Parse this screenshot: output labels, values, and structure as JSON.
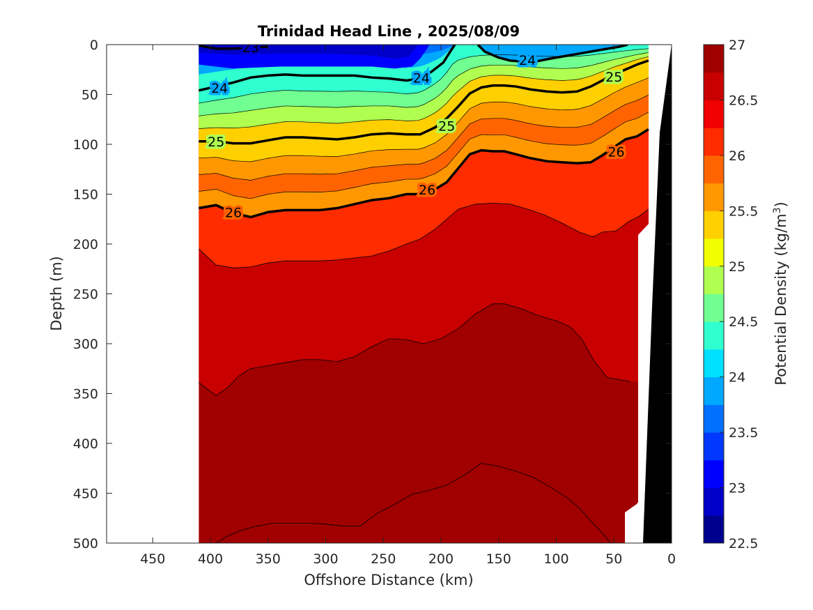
{
  "chart_data": {
    "type": "contour",
    "title": "Trinidad Head Line , 2025/08/09",
    "xlabel": "Offshore Distance (km)",
    "ylabel": "Depth (m)",
    "xlim": [
      490,
      0
    ],
    "ylim": [
      0,
      500
    ],
    "x_ticks": [
      450,
      400,
      350,
      300,
      250,
      200,
      150,
      100,
      50,
      0
    ],
    "y_ticks": [
      0,
      50,
      100,
      150,
      200,
      250,
      300,
      350,
      400,
      450,
      500
    ],
    "data_x_range": [
      410,
      20
    ],
    "colorbar": {
      "label": "Potential Density (kg/m",
      "label_sup": "3",
      "label_end": ")",
      "ticks": [
        "22.5",
        "23",
        "23.5",
        "24",
        "24.5",
        "25",
        "25.5",
        "26",
        "26.5",
        "27"
      ],
      "range": [
        22.5,
        27
      ],
      "step": 0.25,
      "colors": [
        "#00008f",
        "#0000c8",
        "#0000ff",
        "#0038ff",
        "#0070ff",
        "#00a8ff",
        "#00e0ff",
        "#30ffd0",
        "#70ff90",
        "#b0ff50",
        "#f0ff00",
        "#ffd000",
        "#ff9800",
        "#ff6400",
        "#ff2c00",
        "#f00000",
        "#c80000",
        "#a00000"
      ]
    },
    "contours": [
      {
        "level": 23.0,
        "label": "23",
        "points": [
          [
            410,
            1
          ],
          [
            395,
            4
          ],
          [
            380,
            4
          ],
          [
            365,
            3
          ],
          [
            350,
            2
          ]
        ]
      },
      {
        "level": 24.0,
        "label": "24",
        "points": [
          [
            410,
            46
          ],
          [
            395,
            42
          ],
          [
            380,
            38
          ],
          [
            365,
            33
          ],
          [
            350,
            31
          ],
          [
            335,
            30
          ],
          [
            320,
            31
          ],
          [
            305,
            31
          ],
          [
            290,
            31
          ],
          [
            275,
            31
          ],
          [
            260,
            33
          ],
          [
            245,
            34
          ],
          [
            230,
            36
          ],
          [
            218,
            34
          ],
          [
            208,
            27
          ],
          [
            198,
            18
          ],
          [
            192,
            7
          ],
          [
            188,
            0
          ]
        ]
      },
      {
        "level": 24.0,
        "label": "24",
        "points": [
          [
            168,
            0
          ],
          [
            162,
            7
          ],
          [
            150,
            13
          ],
          [
            140,
            16
          ],
          [
            130,
            17
          ],
          [
            118,
            17
          ],
          [
            105,
            14
          ],
          [
            90,
            11
          ],
          [
            75,
            8
          ],
          [
            60,
            5
          ],
          [
            45,
            2
          ],
          [
            38,
            0
          ]
        ]
      },
      {
        "level": 25.0,
        "label": "25",
        "points": [
          [
            410,
            97
          ],
          [
            395,
            97
          ],
          [
            380,
            99
          ],
          [
            365,
            99
          ],
          [
            350,
            96
          ],
          [
            335,
            93
          ],
          [
            320,
            93
          ],
          [
            305,
            94
          ],
          [
            290,
            95
          ],
          [
            275,
            93
          ],
          [
            260,
            90
          ],
          [
            245,
            89
          ],
          [
            230,
            90
          ],
          [
            218,
            90
          ],
          [
            205,
            83
          ],
          [
            195,
            74
          ],
          [
            185,
            62
          ],
          [
            175,
            49
          ],
          [
            165,
            43
          ],
          [
            155,
            41
          ],
          [
            145,
            41
          ],
          [
            135,
            42
          ],
          [
            122,
            45
          ],
          [
            108,
            47
          ],
          [
            95,
            48
          ],
          [
            82,
            47
          ],
          [
            70,
            42
          ],
          [
            60,
            36
          ],
          [
            50,
            30
          ],
          [
            40,
            25
          ],
          [
            30,
            20
          ],
          [
            20,
            16
          ]
        ]
      },
      {
        "level": 26.0,
        "label": "26",
        "points": [
          [
            410,
            164
          ],
          [
            395,
            161
          ],
          [
            380,
            169
          ],
          [
            365,
            173
          ],
          [
            350,
            168
          ],
          [
            335,
            166
          ],
          [
            320,
            166
          ],
          [
            305,
            166
          ],
          [
            290,
            164
          ],
          [
            275,
            160
          ],
          [
            260,
            156
          ],
          [
            245,
            154
          ],
          [
            230,
            150
          ],
          [
            218,
            150
          ],
          [
            205,
            145
          ],
          [
            195,
            138
          ],
          [
            185,
            124
          ],
          [
            175,
            110
          ],
          [
            165,
            106
          ],
          [
            155,
            107
          ],
          [
            145,
            107
          ],
          [
            135,
            110
          ],
          [
            122,
            114
          ],
          [
            108,
            117
          ],
          [
            95,
            118
          ],
          [
            82,
            119
          ],
          [
            70,
            118
          ],
          [
            60,
            111
          ],
          [
            50,
            103
          ],
          [
            40,
            95
          ],
          [
            30,
            92
          ],
          [
            20,
            85
          ]
        ]
      },
      {
        "level": 26.5,
        "label": "",
        "points": [
          [
            410,
            205
          ],
          [
            395,
            221
          ],
          [
            380,
            224
          ],
          [
            365,
            223
          ],
          [
            350,
            219
          ],
          [
            335,
            217
          ],
          [
            320,
            217
          ],
          [
            305,
            217
          ],
          [
            290,
            216
          ],
          [
            275,
            214
          ],
          [
            260,
            212
          ],
          [
            245,
            207
          ],
          [
            230,
            200
          ],
          [
            218,
            195
          ],
          [
            205,
            185
          ],
          [
            195,
            175
          ],
          [
            185,
            165
          ],
          [
            170,
            160
          ],
          [
            155,
            159
          ],
          [
            140,
            160
          ],
          [
            125,
            165
          ],
          [
            110,
            171
          ],
          [
            95,
            179
          ],
          [
            80,
            188
          ],
          [
            68,
            193
          ],
          [
            60,
            188
          ],
          [
            48,
            187
          ],
          [
            38,
            178
          ],
          [
            28,
            172
          ],
          [
            20,
            165
          ]
        ]
      },
      {
        "level": 26.75,
        "label": "",
        "points": [
          [
            410,
            339
          ],
          [
            395,
            352
          ],
          [
            385,
            344
          ],
          [
            375,
            332
          ],
          [
            365,
            325
          ],
          [
            350,
            322
          ],
          [
            335,
            319
          ],
          [
            320,
            316
          ],
          [
            305,
            316
          ],
          [
            290,
            318
          ],
          [
            275,
            313
          ],
          [
            260,
            303
          ],
          [
            245,
            295
          ],
          [
            230,
            296
          ],
          [
            215,
            300
          ],
          [
            200,
            295
          ],
          [
            185,
            285
          ],
          [
            170,
            270
          ],
          [
            155,
            260
          ],
          [
            145,
            260
          ],
          [
            130,
            265
          ],
          [
            115,
            272
          ],
          [
            100,
            277
          ],
          [
            88,
            283
          ],
          [
            78,
            295
          ],
          [
            68,
            316
          ],
          [
            56,
            334
          ],
          [
            45,
            336
          ],
          [
            36,
            338
          ]
        ]
      },
      {
        "level": 27.0,
        "label": "",
        "points": [
          [
            395,
            500
          ],
          [
            385,
            493
          ],
          [
            375,
            488
          ],
          [
            360,
            483
          ],
          [
            345,
            480
          ],
          [
            330,
            480
          ],
          [
            315,
            480
          ],
          [
            300,
            481
          ],
          [
            285,
            483
          ],
          [
            270,
            483
          ],
          [
            255,
            470
          ],
          [
            240,
            461
          ],
          [
            225,
            451
          ],
          [
            210,
            447
          ],
          [
            195,
            442
          ],
          [
            180,
            432
          ],
          [
            165,
            420
          ],
          [
            150,
            423
          ],
          [
            135,
            428
          ],
          [
            120,
            434
          ],
          [
            105,
            444
          ],
          [
            90,
            455
          ],
          [
            80,
            465
          ],
          [
            70,
            478
          ],
          [
            60,
            490
          ],
          [
            53,
            500
          ]
        ]
      }
    ]
  }
}
